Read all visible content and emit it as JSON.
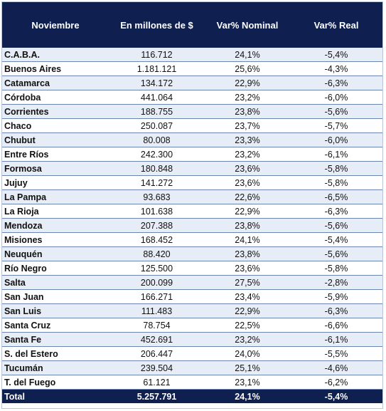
{
  "table": {
    "headers": [
      "Noviembre",
      "En millones de $",
      "Var% Nominal",
      "Var% Real"
    ],
    "rows": [
      [
        "C.A.B.A.",
        "116.712",
        "24,1%",
        "-5,4%"
      ],
      [
        "Buenos Aires",
        "1.181.121",
        "25,6%",
        "-4,3%"
      ],
      [
        "Catamarca",
        "134.172",
        "22,9%",
        "-6,3%"
      ],
      [
        "Córdoba",
        "441.064",
        "23,2%",
        "-6,0%"
      ],
      [
        "Corrientes",
        "188.755",
        "23,8%",
        "-5,6%"
      ],
      [
        "Chaco",
        "250.087",
        "23,7%",
        "-5,7%"
      ],
      [
        "Chubut",
        "80.008",
        "23,3%",
        "-6,0%"
      ],
      [
        "Entre Ríos",
        "242.300",
        "23,2%",
        "-6,1%"
      ],
      [
        "Formosa",
        "180.848",
        "23,6%",
        "-5,8%"
      ],
      [
        "Jujuy",
        "141.272",
        "23,6%",
        "-5,8%"
      ],
      [
        "La Pampa",
        "93.683",
        "22,6%",
        "-6,5%"
      ],
      [
        "La Rioja",
        "101.638",
        "22,9%",
        "-6,3%"
      ],
      [
        "Mendoza",
        "207.388",
        "23,8%",
        "-5,6%"
      ],
      [
        "Misiones",
        "168.452",
        "24,1%",
        "-5,4%"
      ],
      [
        "Neuquén",
        "88.420",
        "23,8%",
        "-5,6%"
      ],
      [
        "Río Negro",
        "125.500",
        "23,6%",
        "-5,8%"
      ],
      [
        "Salta",
        "200.099",
        "27,5%",
        "-2,8%"
      ],
      [
        "San Juan",
        "166.271",
        "23,4%",
        "-5,9%"
      ],
      [
        "San Luis",
        "111.483",
        "22,9%",
        "-6,3%"
      ],
      [
        "Santa Cruz",
        "78.754",
        "22,5%",
        "-6,6%"
      ],
      [
        "Santa Fe",
        "452.691",
        "23,2%",
        "-6,1%"
      ],
      [
        "S. del Estero",
        "206.447",
        "24,0%",
        "-5,5%"
      ],
      [
        "Tucumán",
        "239.504",
        "25,1%",
        "-4,6%"
      ],
      [
        "T. del Fuego",
        "61.121",
        "23,1%",
        "-6,2%"
      ]
    ],
    "total": [
      "Total",
      "5.257.791",
      "24,1%",
      "-5,4%"
    ]
  }
}
